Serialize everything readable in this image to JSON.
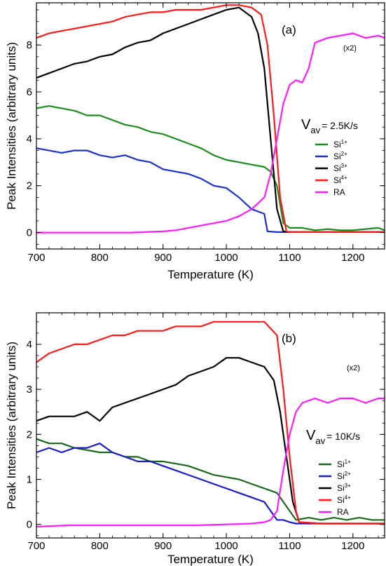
{
  "chart_data": [
    {
      "type": "line",
      "panel_label": "(a)",
      "xlabel": "Temperature (K)",
      "ylabel": "Peak Intensities (arbitrary units)",
      "xlim": [
        700,
        1250
      ],
      "ylim": [
        -0.7,
        9.8
      ],
      "xticks": [
        700,
        800,
        900,
        1000,
        1100,
        1200
      ],
      "yticks": [
        0,
        2,
        4,
        6,
        8
      ],
      "annotation": "(x2)",
      "rate_symbol": "V",
      "rate_subscript": "av",
      "rate_value": "= 2.5K/s",
      "legend_placement": "center-right",
      "series": [
        {
          "name": "Si",
          "sup": "1+",
          "color": "#1a8c1a",
          "x": [
            700,
            720,
            740,
            760,
            780,
            800,
            820,
            840,
            860,
            880,
            900,
            920,
            940,
            960,
            980,
            1000,
            1020,
            1040,
            1060,
            1070,
            1080,
            1085,
            1090,
            1100,
            1120,
            1140,
            1160,
            1180,
            1200,
            1220,
            1240,
            1250
          ],
          "y": [
            5.3,
            5.4,
            5.3,
            5.2,
            5.0,
            5.0,
            4.8,
            4.6,
            4.5,
            4.3,
            4.2,
            4.0,
            3.8,
            3.6,
            3.3,
            3.1,
            3.0,
            2.9,
            2.8,
            2.6,
            2.0,
            1.2,
            0.4,
            0.2,
            0.2,
            0.1,
            0.15,
            0.1,
            0.1,
            0.15,
            0.2,
            0.1
          ]
        },
        {
          "name": "Si",
          "sup": "2+",
          "color": "#1a2fcc",
          "x": [
            700,
            720,
            740,
            760,
            780,
            800,
            820,
            840,
            860,
            880,
            900,
            920,
            940,
            960,
            980,
            1000,
            1020,
            1040,
            1050,
            1060,
            1065,
            1080,
            1100,
            1150,
            1200,
            1250
          ],
          "y": [
            3.6,
            3.5,
            3.4,
            3.5,
            3.5,
            3.3,
            3.2,
            3.3,
            3.1,
            3.0,
            2.7,
            2.6,
            2.5,
            2.3,
            2.0,
            1.9,
            1.5,
            1.0,
            0.9,
            0.8,
            0.05,
            0.02,
            0.02,
            0.02,
            0.02,
            0.02
          ]
        },
        {
          "name": "Si",
          "sup": "3+",
          "color": "#000000",
          "x": [
            700,
            720,
            740,
            760,
            780,
            800,
            820,
            840,
            860,
            880,
            900,
            920,
            940,
            960,
            980,
            1000,
            1020,
            1040,
            1050,
            1060,
            1070,
            1080,
            1090,
            1100,
            1150,
            1200,
            1250
          ],
          "y": [
            6.6,
            6.8,
            7.0,
            7.2,
            7.3,
            7.5,
            7.6,
            7.9,
            8.1,
            8.2,
            8.5,
            8.7,
            8.9,
            9.1,
            9.3,
            9.5,
            9.6,
            9.2,
            8.5,
            7.0,
            4.0,
            1.0,
            0.05,
            0.02,
            0.02,
            0.02,
            0.02
          ]
        },
        {
          "name": "Si",
          "sup": "4+",
          "color": "#ff1a1a",
          "x": [
            700,
            720,
            740,
            760,
            780,
            800,
            820,
            840,
            860,
            880,
            900,
            920,
            940,
            960,
            980,
            1000,
            1020,
            1040,
            1055,
            1065,
            1075,
            1085,
            1095,
            1100,
            1150,
            1200,
            1250
          ],
          "y": [
            8.3,
            8.5,
            8.6,
            8.7,
            8.8,
            8.9,
            9.0,
            9.2,
            9.3,
            9.4,
            9.4,
            9.5,
            9.5,
            9.5,
            9.6,
            9.7,
            9.7,
            9.6,
            9.3,
            8.0,
            5.0,
            1.5,
            0.05,
            0.02,
            0.02,
            0.02,
            0.02
          ]
        },
        {
          "name": "RA",
          "sup": "",
          "color": "#ff1aff",
          "x": [
            700,
            750,
            800,
            850,
            900,
            920,
            940,
            960,
            980,
            1000,
            1020,
            1040,
            1060,
            1070,
            1080,
            1090,
            1100,
            1110,
            1120,
            1130,
            1140,
            1160,
            1180,
            1200,
            1220,
            1240,
            1250
          ],
          "y": [
            0.0,
            0.0,
            0.0,
            0.0,
            0.05,
            0.1,
            0.2,
            0.3,
            0.4,
            0.5,
            0.7,
            1.0,
            1.5,
            2.5,
            4.0,
            5.5,
            6.3,
            6.5,
            6.4,
            7.0,
            8.1,
            8.3,
            8.4,
            8.5,
            8.3,
            8.4,
            8.3
          ]
        }
      ]
    },
    {
      "type": "line",
      "panel_label": "(b)",
      "xlabel": "Temperature (K)",
      "ylabel": "Peak Intensities (arbitrary units)",
      "xlim": [
        700,
        1250
      ],
      "ylim": [
        -0.3,
        4.7
      ],
      "xticks": [
        700,
        800,
        900,
        1000,
        1100,
        1200
      ],
      "yticks": [
        0,
        1,
        2,
        3,
        4
      ],
      "annotation": "(x2)",
      "rate_symbol": "V",
      "rate_subscript": "av",
      "rate_value": "= 10K/s",
      "legend_placement": "center-right",
      "series": [
        {
          "name": "Si",
          "sup": "1+",
          "color": "#1a661a",
          "x": [
            700,
            720,
            740,
            760,
            780,
            800,
            820,
            840,
            860,
            880,
            900,
            920,
            940,
            960,
            980,
            1000,
            1020,
            1040,
            1060,
            1080,
            1090,
            1100,
            1110,
            1130,
            1150,
            1170,
            1190,
            1210,
            1230,
            1250
          ],
          "y": [
            1.9,
            1.8,
            1.8,
            1.7,
            1.65,
            1.6,
            1.6,
            1.5,
            1.5,
            1.4,
            1.4,
            1.35,
            1.3,
            1.2,
            1.1,
            1.05,
            1.0,
            0.9,
            0.8,
            0.7,
            0.5,
            0.3,
            0.1,
            0.15,
            0.1,
            0.15,
            0.1,
            0.15,
            0.1,
            0.1
          ]
        },
        {
          "name": "Si",
          "sup": "2+",
          "color": "#1a1acc",
          "x": [
            700,
            720,
            740,
            760,
            780,
            800,
            820,
            840,
            860,
            880,
            900,
            920,
            940,
            960,
            980,
            1000,
            1020,
            1040,
            1060,
            1070,
            1080,
            1090,
            1100,
            1110,
            1150,
            1200,
            1250
          ],
          "y": [
            1.6,
            1.7,
            1.6,
            1.7,
            1.7,
            1.8,
            1.6,
            1.5,
            1.4,
            1.4,
            1.3,
            1.2,
            1.1,
            1.0,
            0.9,
            0.8,
            0.7,
            0.6,
            0.5,
            0.3,
            0.1,
            0.1,
            0.05,
            0.02,
            0.02,
            0.02,
            0.02
          ]
        },
        {
          "name": "Si",
          "sup": "3+",
          "color": "#000000",
          "x": [
            700,
            720,
            740,
            760,
            780,
            800,
            820,
            840,
            860,
            880,
            900,
            920,
            940,
            960,
            980,
            1000,
            1020,
            1040,
            1060,
            1075,
            1085,
            1095,
            1105,
            1115,
            1150,
            1200,
            1250
          ],
          "y": [
            2.3,
            2.4,
            2.4,
            2.4,
            2.5,
            2.3,
            2.6,
            2.7,
            2.8,
            2.9,
            3.0,
            3.1,
            3.3,
            3.4,
            3.5,
            3.7,
            3.7,
            3.6,
            3.5,
            3.2,
            2.5,
            1.5,
            0.5,
            0.05,
            0.02,
            0.02,
            0.02
          ]
        },
        {
          "name": "Si",
          "sup": "4+",
          "color": "#ff1a1a",
          "x": [
            700,
            720,
            740,
            760,
            780,
            800,
            820,
            840,
            860,
            880,
            900,
            920,
            940,
            960,
            980,
            1000,
            1020,
            1040,
            1060,
            1080,
            1090,
            1100,
            1110,
            1115,
            1150,
            1200,
            1250
          ],
          "y": [
            3.6,
            3.8,
            3.9,
            4.0,
            4.0,
            4.1,
            4.2,
            4.2,
            4.3,
            4.3,
            4.3,
            4.4,
            4.4,
            4.4,
            4.5,
            4.5,
            4.5,
            4.5,
            4.5,
            4.2,
            3.0,
            1.5,
            0.3,
            0.05,
            0.02,
            0.02,
            0.02
          ]
        },
        {
          "name": "RA",
          "sup": "",
          "color": "#ff1aff",
          "x": [
            700,
            750,
            800,
            850,
            900,
            950,
            1000,
            1040,
            1060,
            1070,
            1080,
            1090,
            1100,
            1110,
            1120,
            1140,
            1160,
            1180,
            1200,
            1220,
            1240,
            1250
          ],
          "y": [
            -0.05,
            -0.02,
            -0.02,
            -0.02,
            -0.02,
            -0.02,
            0.0,
            0.02,
            0.05,
            0.1,
            0.3,
            1.2,
            2.0,
            2.5,
            2.7,
            2.8,
            2.7,
            2.8,
            2.8,
            2.7,
            2.8,
            2.8
          ]
        }
      ]
    }
  ]
}
